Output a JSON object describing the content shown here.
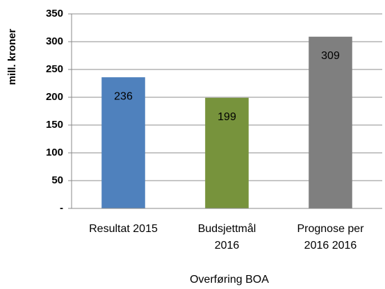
{
  "chart_data": {
    "type": "bar",
    "y_axis_label": "mill. kroner",
    "x_axis_label": "Overføring BOA",
    "categories": [
      "Resultat 2015",
      "Budsjettmål 2016",
      "Prognose per 2016 2016"
    ],
    "values": [
      236,
      199,
      309
    ],
    "colors": [
      "#4f81bd",
      "#77933c",
      "#7f7f7f"
    ],
    "ylim": [
      0,
      350
    ],
    "yticks": [
      {
        "value": 0,
        "label": "-"
      },
      50,
      100,
      150,
      200,
      250,
      300,
      350
    ],
    "grid": true
  }
}
